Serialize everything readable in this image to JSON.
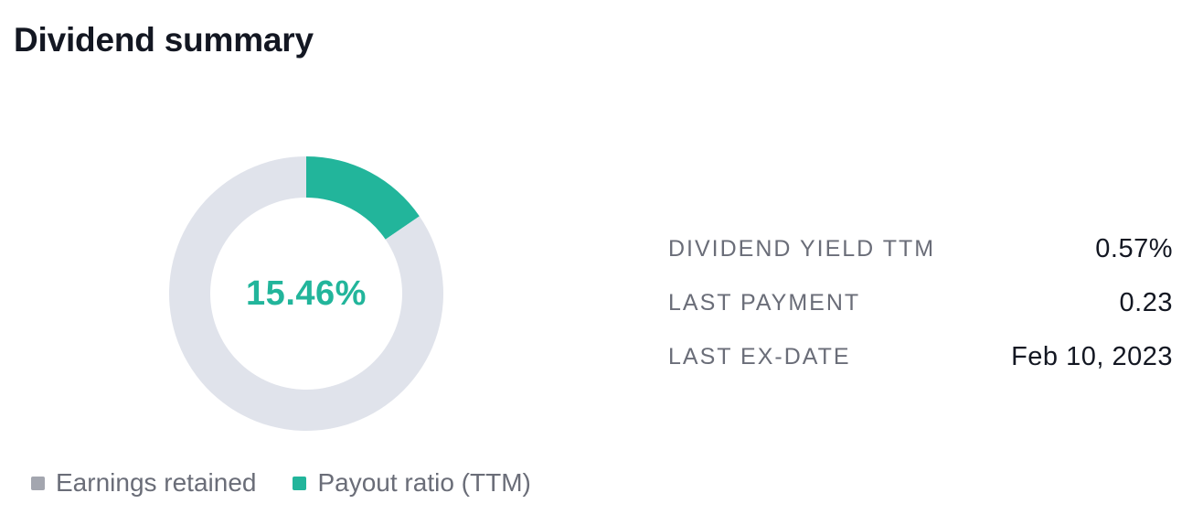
{
  "title": "Dividend summary",
  "chart_data": {
    "type": "pie",
    "center_label": "15.46%",
    "slices": [
      {
        "name": "Payout ratio (TTM)",
        "value": 15.46,
        "color": "#22b59b"
      },
      {
        "name": "Earnings retained",
        "value": 84.54,
        "color": "#e0e3eb"
      }
    ],
    "legend": [
      "Earnings retained",
      "Payout ratio (TTM)"
    ],
    "legend_position": "bottom-left"
  },
  "legend": {
    "items": [
      {
        "label": "Earnings retained",
        "color": "#a3a6af"
      },
      {
        "label": "Payout ratio (TTM)",
        "color": "#22b59b"
      }
    ]
  },
  "stats": [
    {
      "label": "DIVIDEND YIELD TTM",
      "value": "0.57%"
    },
    {
      "label": "LAST PAYMENT",
      "value": "0.23"
    },
    {
      "label": "LAST EX-DATE",
      "value": "Feb 10, 2023"
    }
  ],
  "colors": {
    "accent": "#22b59b",
    "track": "#e0e3eb",
    "text_primary": "#131722",
    "text_secondary": "#6a6d78"
  }
}
